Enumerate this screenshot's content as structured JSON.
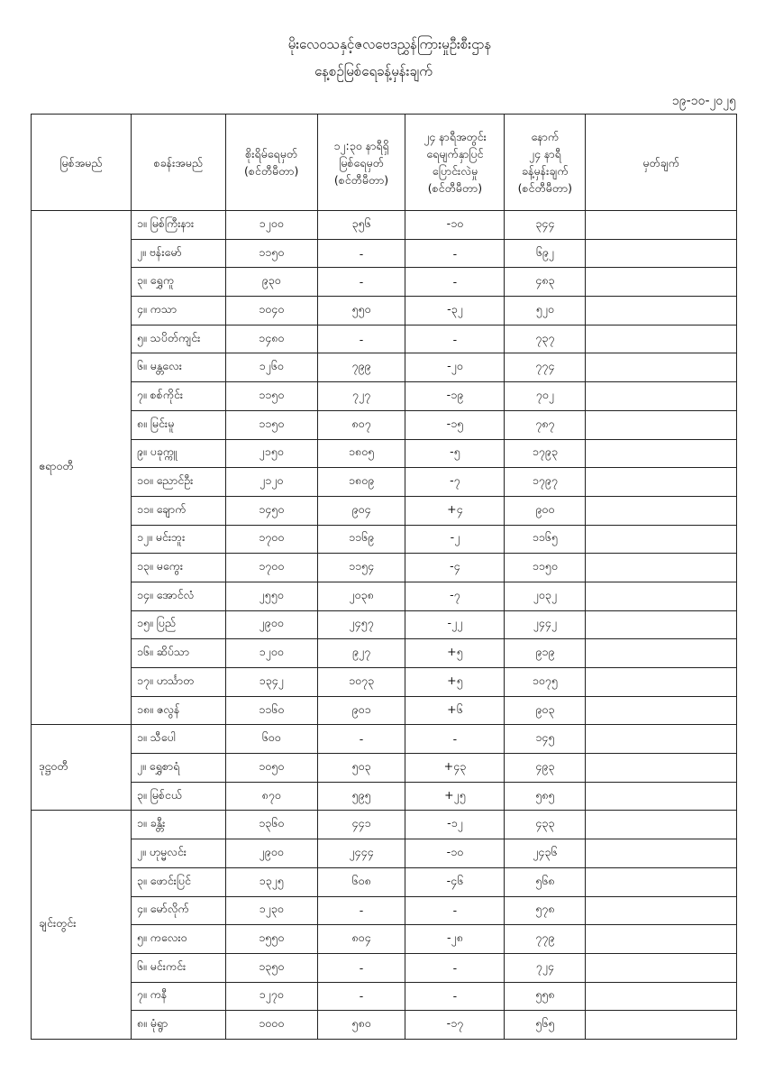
{
  "title": {
    "line1": "မိုးလေဝသနှင့်ဇလဗေဒညွှန်ကြားမှုဦးစီးဌာန",
    "line2": "နေ့စဉ်မြစ်ရေခန့်မှန်းချက်"
  },
  "date": "၁၉-၁၀-၂၀၂၅",
  "headers": [
    "မြစ်အမည်",
    "စခန်းအမည်",
    "စိုးရိမ်ရေမှတ်\n(စင်တီမီတာ)",
    "၁၂:၃၀ နာရီရှိ\nမြစ်ရေမှတ်\n(စင်တီမီတာ)",
    "၂၄ နာရီအတွင်း\nရေမျက်နှာပြင်\nပြောင်းလဲမှု\n(စင်တီမီတာ)",
    "နောက်\n၂၄ နာရီ\nခန့်မှန်းချက်\n(စင်တီမီတာ)",
    "မှတ်ချက်"
  ],
  "rivers": [
    {
      "name": "ဧရာဝတီ",
      "stations": [
        [
          "၁။ မြစ်ကြီးနား",
          "၁၂၀၀",
          "၃၅၆",
          "-၁၀",
          "၃၄၄",
          ""
        ],
        [
          "၂။ ဗန်းမော်",
          "၁၁၅၀",
          "-",
          "-",
          "၆၉၂",
          ""
        ],
        [
          "၃။ ရွှေကူ",
          "၉၃၀",
          "-",
          "-",
          "၄၈၃",
          ""
        ],
        [
          "၄။ ကသာ",
          "၁၀၄၀",
          "၅၅၀",
          "-၃၂",
          "၅၂၀",
          ""
        ],
        [
          "၅။ သပိတ်ကျင်း",
          "၁၄၈၀",
          "-",
          "-",
          "၇၃၇",
          ""
        ],
        [
          "၆။ မန္တလေး",
          "၁၂၆၀",
          "၇၉၉",
          "-၂၀",
          "၇၇၄",
          ""
        ],
        [
          "၇။ စစ်ကိုင်း",
          "၁၁၅၀",
          "၇၂၇",
          "-၁၉",
          "၇၀၂",
          ""
        ],
        [
          "၈။ မြင်းမူ",
          "၁၁၅၀",
          "၈၀၇",
          "-၁၅",
          "၇၈၇",
          ""
        ],
        [
          "၉။ ပခုက္ကူ",
          "၂၁၅၀",
          "၁၈၀၅",
          "-၅",
          "၁၇၉၃",
          ""
        ],
        [
          "၁၀။ ညောင်ဦး",
          "၂၁၂၀",
          "၁၈၀၉",
          "-၇",
          "၁၇၉၇",
          ""
        ],
        [
          "၁၁။ ချောက်",
          "၁၄၅၀",
          "၉၀၄",
          "+၄",
          "၉၀၀",
          ""
        ],
        [
          "၁၂။ မင်းဘူး",
          "၁၇၀၀",
          "၁၁၆၉",
          "-၂",
          "၁၁၆၅",
          ""
        ],
        [
          "၁၃။ မကွေး",
          "၁၇၀၀",
          "၁၁၅၄",
          "-၄",
          "၁၁၅၀",
          ""
        ],
        [
          "၁၄။ အောင်လံ",
          "၂၅၅၀",
          "၂၀၃၈",
          "-၇",
          "၂၀၃၂",
          ""
        ],
        [
          "၁၅။ ပြည်",
          "၂၉၀၀",
          "၂၄၅၇",
          "-၂၂",
          "၂၄၄၂",
          ""
        ],
        [
          "၁၆။ ဆိပ်သာ",
          "၁၂၀၀",
          "၉၂၇",
          "+၅",
          "၉၁၉",
          ""
        ],
        [
          "၁၇။ ဟင်္သာတ",
          "၁၃၄၂",
          "၁၀၇၃",
          "+၅",
          "၁၀၇၅",
          ""
        ],
        [
          "၁၈။ ဇလွန်",
          "၁၁၆၀",
          "၉၀၁",
          "+၆",
          "၉၀၃",
          ""
        ]
      ]
    },
    {
      "name": "ဒုဋ္ဌဝတီ",
      "stations": [
        [
          "၁။ သီပေါ",
          "၆၀၀",
          "-",
          "-",
          "၁၄၅",
          ""
        ],
        [
          "၂။ ရွှေစာရံ",
          "၁၀၅၀",
          "၅၀၃",
          "+၄၃",
          "၄၉၃",
          ""
        ],
        [
          "၃။ မြစ်ငယ်",
          "၈၇၀",
          "၅၉၅",
          "+၂၅",
          "၅၈၅",
          ""
        ]
      ]
    },
    {
      "name": "ချင်းတွင်း",
      "stations": [
        [
          "၁။ ခန္တီး",
          "၁၃၆၀",
          "၄၄၁",
          "-၁၂",
          "၄၃၃",
          ""
        ],
        [
          "၂။ ဟုမ္မလင်း",
          "၂၉၀၀",
          "၂၄၄၄",
          "-၁၀",
          "၂၄၃၆",
          ""
        ],
        [
          "၃။ ဖောင်းပြင်",
          "၁၃၂၅",
          "၆၀၈",
          "-၄၆",
          "၅၆၈",
          ""
        ],
        [
          "၄။ မော်လိုက်",
          "၁၂၃၀",
          "-",
          "-",
          "၅၇၈",
          ""
        ],
        [
          "၅။ ကလေးဝ",
          "၁၅၅၀",
          "၈၀၄",
          "-၂၈",
          "၇၇၉",
          ""
        ],
        [
          "၆။ မင်းကင်း",
          "၁၃၅၀",
          "-",
          "-",
          "၇၂၄",
          ""
        ],
        [
          "၇။ ကနီ",
          "၁၂၇၀",
          "-",
          "-",
          "၅၅၈",
          ""
        ],
        [
          "၈။ မုံရွာ",
          "၁၀၀၀",
          "၅၈၀",
          "-၁၇",
          "၅၆၅",
          ""
        ]
      ]
    }
  ]
}
